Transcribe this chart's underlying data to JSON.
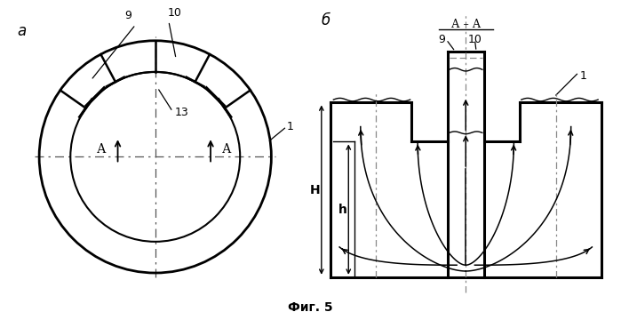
{
  "bg_color": "#ffffff",
  "fig_label": "Фиг. 5",
  "label_a": "а",
  "label_b": "б",
  "label_AA": "А – А",
  "label_H": "H",
  "label_h": "h",
  "label_1a": "1",
  "label_1b": "1",
  "label_9a": "9",
  "label_10a": "10",
  "label_13": "13",
  "label_Aleft": "А",
  "label_Aright": "А",
  "label_9b": "9",
  "label_10b": "10"
}
